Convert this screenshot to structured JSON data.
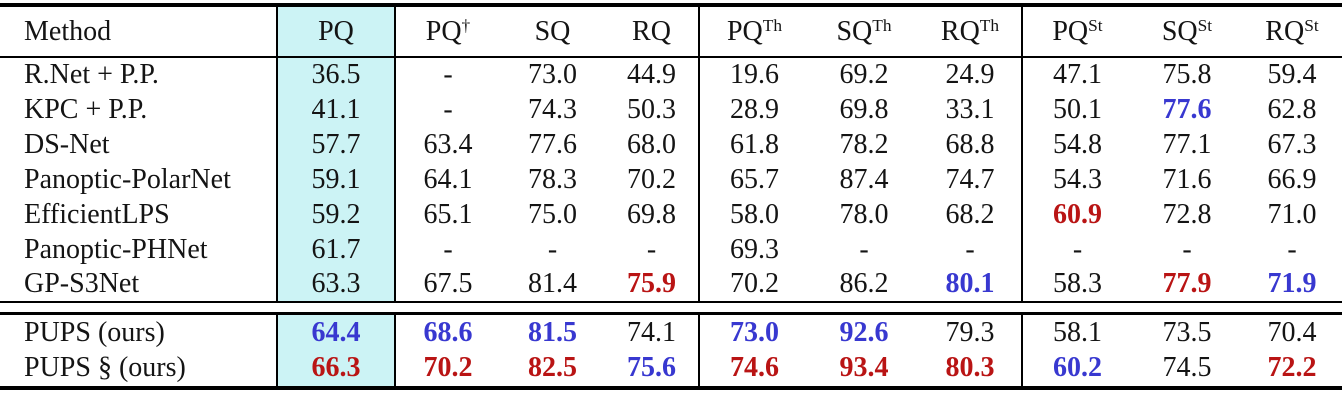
{
  "table": {
    "header": {
      "method_label": "Method",
      "metric_columns": [
        {
          "base": "PQ",
          "sup": "",
          "highlight": true
        },
        {
          "base": "PQ",
          "sup": "†"
        },
        {
          "base": "SQ",
          "sup": ""
        },
        {
          "base": "RQ",
          "sup": ""
        },
        {
          "base": "PQ",
          "sup": "Th"
        },
        {
          "base": "SQ",
          "sup": "Th"
        },
        {
          "base": "RQ",
          "sup": "Th"
        },
        {
          "base": "PQ",
          "sup": "St"
        },
        {
          "base": "SQ",
          "sup": "St"
        },
        {
          "base": "RQ",
          "sup": "St"
        }
      ]
    },
    "sections": [
      {
        "name": "baselines",
        "rows": [
          {
            "method": "R.Net + P.P.",
            "values": [
              {
                "t": "36.5"
              },
              {
                "t": "-"
              },
              {
                "t": "73.0"
              },
              {
                "t": "44.9"
              },
              {
                "t": "19.6"
              },
              {
                "t": "69.2"
              },
              {
                "t": "24.9"
              },
              {
                "t": "47.1"
              },
              {
                "t": "75.8"
              },
              {
                "t": "59.4"
              }
            ]
          },
          {
            "method": "KPC + P.P.",
            "values": [
              {
                "t": "41.1"
              },
              {
                "t": "-"
              },
              {
                "t": "74.3"
              },
              {
                "t": "50.3"
              },
              {
                "t": "28.9"
              },
              {
                "t": "69.8"
              },
              {
                "t": "33.1"
              },
              {
                "t": "50.1"
              },
              {
                "t": "77.6",
                "s": "blue"
              },
              {
                "t": "62.8"
              }
            ]
          },
          {
            "method": "DS-Net",
            "values": [
              {
                "t": "57.7"
              },
              {
                "t": "63.4"
              },
              {
                "t": "77.6"
              },
              {
                "t": "68.0"
              },
              {
                "t": "61.8"
              },
              {
                "t": "78.2"
              },
              {
                "t": "68.8"
              },
              {
                "t": "54.8"
              },
              {
                "t": "77.1"
              },
              {
                "t": "67.3"
              }
            ]
          },
          {
            "method": "Panoptic-PolarNet",
            "values": [
              {
                "t": "59.1"
              },
              {
                "t": "64.1"
              },
              {
                "t": "78.3"
              },
              {
                "t": "70.2"
              },
              {
                "t": "65.7"
              },
              {
                "t": "87.4"
              },
              {
                "t": "74.7"
              },
              {
                "t": "54.3"
              },
              {
                "t": "71.6"
              },
              {
                "t": "66.9"
              }
            ]
          },
          {
            "method": "EfficientLPS",
            "values": [
              {
                "t": "59.2"
              },
              {
                "t": "65.1"
              },
              {
                "t": "75.0"
              },
              {
                "t": "69.8"
              },
              {
                "t": "58.0"
              },
              {
                "t": "78.0"
              },
              {
                "t": "68.2"
              },
              {
                "t": "60.9",
                "s": "red"
              },
              {
                "t": "72.8"
              },
              {
                "t": "71.0"
              }
            ]
          },
          {
            "method": "Panoptic-PHNet",
            "values": [
              {
                "t": "61.7"
              },
              {
                "t": "-"
              },
              {
                "t": "-"
              },
              {
                "t": "-"
              },
              {
                "t": "69.3"
              },
              {
                "t": "-"
              },
              {
                "t": "-"
              },
              {
                "t": "-"
              },
              {
                "t": "-"
              },
              {
                "t": "-"
              }
            ]
          },
          {
            "method": "GP-S3Net",
            "values": [
              {
                "t": "63.3"
              },
              {
                "t": "67.5"
              },
              {
                "t": "81.4"
              },
              {
                "t": "75.9",
                "s": "red"
              },
              {
                "t": "70.2"
              },
              {
                "t": "86.2"
              },
              {
                "t": "80.1",
                "s": "blue"
              },
              {
                "t": "58.3"
              },
              {
                "t": "77.9",
                "s": "red"
              },
              {
                "t": "71.9",
                "s": "blue"
              }
            ]
          }
        ]
      },
      {
        "name": "ours",
        "rows": [
          {
            "method": "PUPS (ours)",
            "values": [
              {
                "t": "64.4",
                "s": "blue"
              },
              {
                "t": "68.6",
                "s": "blue"
              },
              {
                "t": "81.5",
                "s": "blue"
              },
              {
                "t": "74.1"
              },
              {
                "t": "73.0",
                "s": "blue"
              },
              {
                "t": "92.6",
                "s": "blue"
              },
              {
                "t": "79.3"
              },
              {
                "t": "58.1"
              },
              {
                "t": "73.5"
              },
              {
                "t": "70.4"
              }
            ]
          },
          {
            "method": "PUPS § (ours)",
            "values": [
              {
                "t": "66.3",
                "s": "red"
              },
              {
                "t": "70.2",
                "s": "red"
              },
              {
                "t": "82.5",
                "s": "red"
              },
              {
                "t": "75.6",
                "s": "blue"
              },
              {
                "t": "74.6",
                "s": "red"
              },
              {
                "t": "93.4",
                "s": "red"
              },
              {
                "t": "80.3",
                "s": "red"
              },
              {
                "t": "60.2",
                "s": "blue"
              },
              {
                "t": "74.5"
              },
              {
                "t": "72.2",
                "s": "red"
              }
            ]
          }
        ]
      }
    ],
    "colors": {
      "highlight": "#ccf3f5",
      "best_red": "#b91414",
      "second_blue": "#3838d0",
      "text": "#141414",
      "rule": "#000000"
    }
  }
}
